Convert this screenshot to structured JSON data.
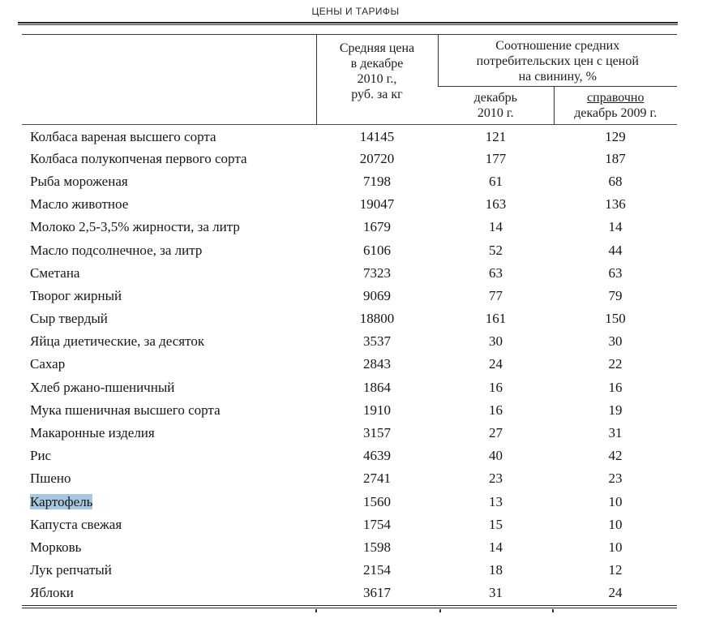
{
  "title": "ЦЕНЫ И ТАРИФЫ",
  "colors": {
    "highlight": "#a9c7e1"
  },
  "table": {
    "header": {
      "name_col": "",
      "price_col": "Средняя цена\nв декабре\n2010 г.,\nруб. за кг",
      "ratio_col": "Соотношение средних\nпотребительских цен с ценой\nна свинину, %",
      "sub_dec2010": "декабрь\n2010 г.",
      "sub_ref_line1": "справочно",
      "sub_ref_line2": "декабрь 2009 г."
    },
    "rows": [
      {
        "name": "Колбаса вареная высшего сорта",
        "price": "14145",
        "dec2010": "121",
        "dec2009": "129",
        "highlighted": false
      },
      {
        "name": "Колбаса полукопченая первого сорта",
        "price": "20720",
        "dec2010": "177",
        "dec2009": "187",
        "highlighted": false
      },
      {
        "name": "Рыба мороженая",
        "price": "7198",
        "dec2010": "61",
        "dec2009": "68",
        "highlighted": false
      },
      {
        "name": "Масло животное",
        "price": "19047",
        "dec2010": "163",
        "dec2009": "136",
        "highlighted": false
      },
      {
        "name": "Молоко 2,5-3,5% жирности, за литр",
        "price": "1679",
        "dec2010": "14",
        "dec2009": "14",
        "highlighted": false
      },
      {
        "name": "Масло подсолнечное, за литр",
        "price": "6106",
        "dec2010": "52",
        "dec2009": "44",
        "highlighted": false
      },
      {
        "name": "Сметана",
        "price": "7323",
        "dec2010": "63",
        "dec2009": "63",
        "highlighted": false
      },
      {
        "name": "Творог жирный",
        "price": "9069",
        "dec2010": "77",
        "dec2009": "79",
        "highlighted": false
      },
      {
        "name": "Сыр твердый",
        "price": "18800",
        "dec2010": "161",
        "dec2009": "150",
        "highlighted": false
      },
      {
        "name": "Яйца диетические, за десяток",
        "price": "3537",
        "dec2010": "30",
        "dec2009": "30",
        "highlighted": false
      },
      {
        "name": "Сахар",
        "price": "2843",
        "dec2010": "24",
        "dec2009": "22",
        "highlighted": false
      },
      {
        "name": "Хлеб ржано-пшеничный",
        "price": "1864",
        "dec2010": "16",
        "dec2009": "16",
        "highlighted": false
      },
      {
        "name": "Мука пшеничная высшего сорта",
        "price": "1910",
        "dec2010": "16",
        "dec2009": "19",
        "highlighted": false
      },
      {
        "name": "Макаронные изделия",
        "price": "3157",
        "dec2010": "27",
        "dec2009": "31",
        "highlighted": false
      },
      {
        "name": "Рис",
        "price": "4639",
        "dec2010": "40",
        "dec2009": "42",
        "highlighted": false
      },
      {
        "name": "Пшено",
        "price": "2741",
        "dec2010": "23",
        "dec2009": "23",
        "highlighted": false
      },
      {
        "name": "Картофель",
        "price": "1560",
        "dec2010": "13",
        "dec2009": "10",
        "highlighted": true
      },
      {
        "name": "Капуста свежая",
        "price": "1754",
        "dec2010": "15",
        "dec2009": "10",
        "highlighted": false
      },
      {
        "name": "Морковь",
        "price": "1598",
        "dec2010": "14",
        "dec2009": "10",
        "highlighted": false
      },
      {
        "name": "Лук репчатый",
        "price": "2154",
        "dec2010": "18",
        "dec2009": "12",
        "highlighted": false
      },
      {
        "name": "Яблоки",
        "price": "3617",
        "dec2010": "31",
        "dec2009": "24",
        "highlighted": false
      }
    ]
  }
}
